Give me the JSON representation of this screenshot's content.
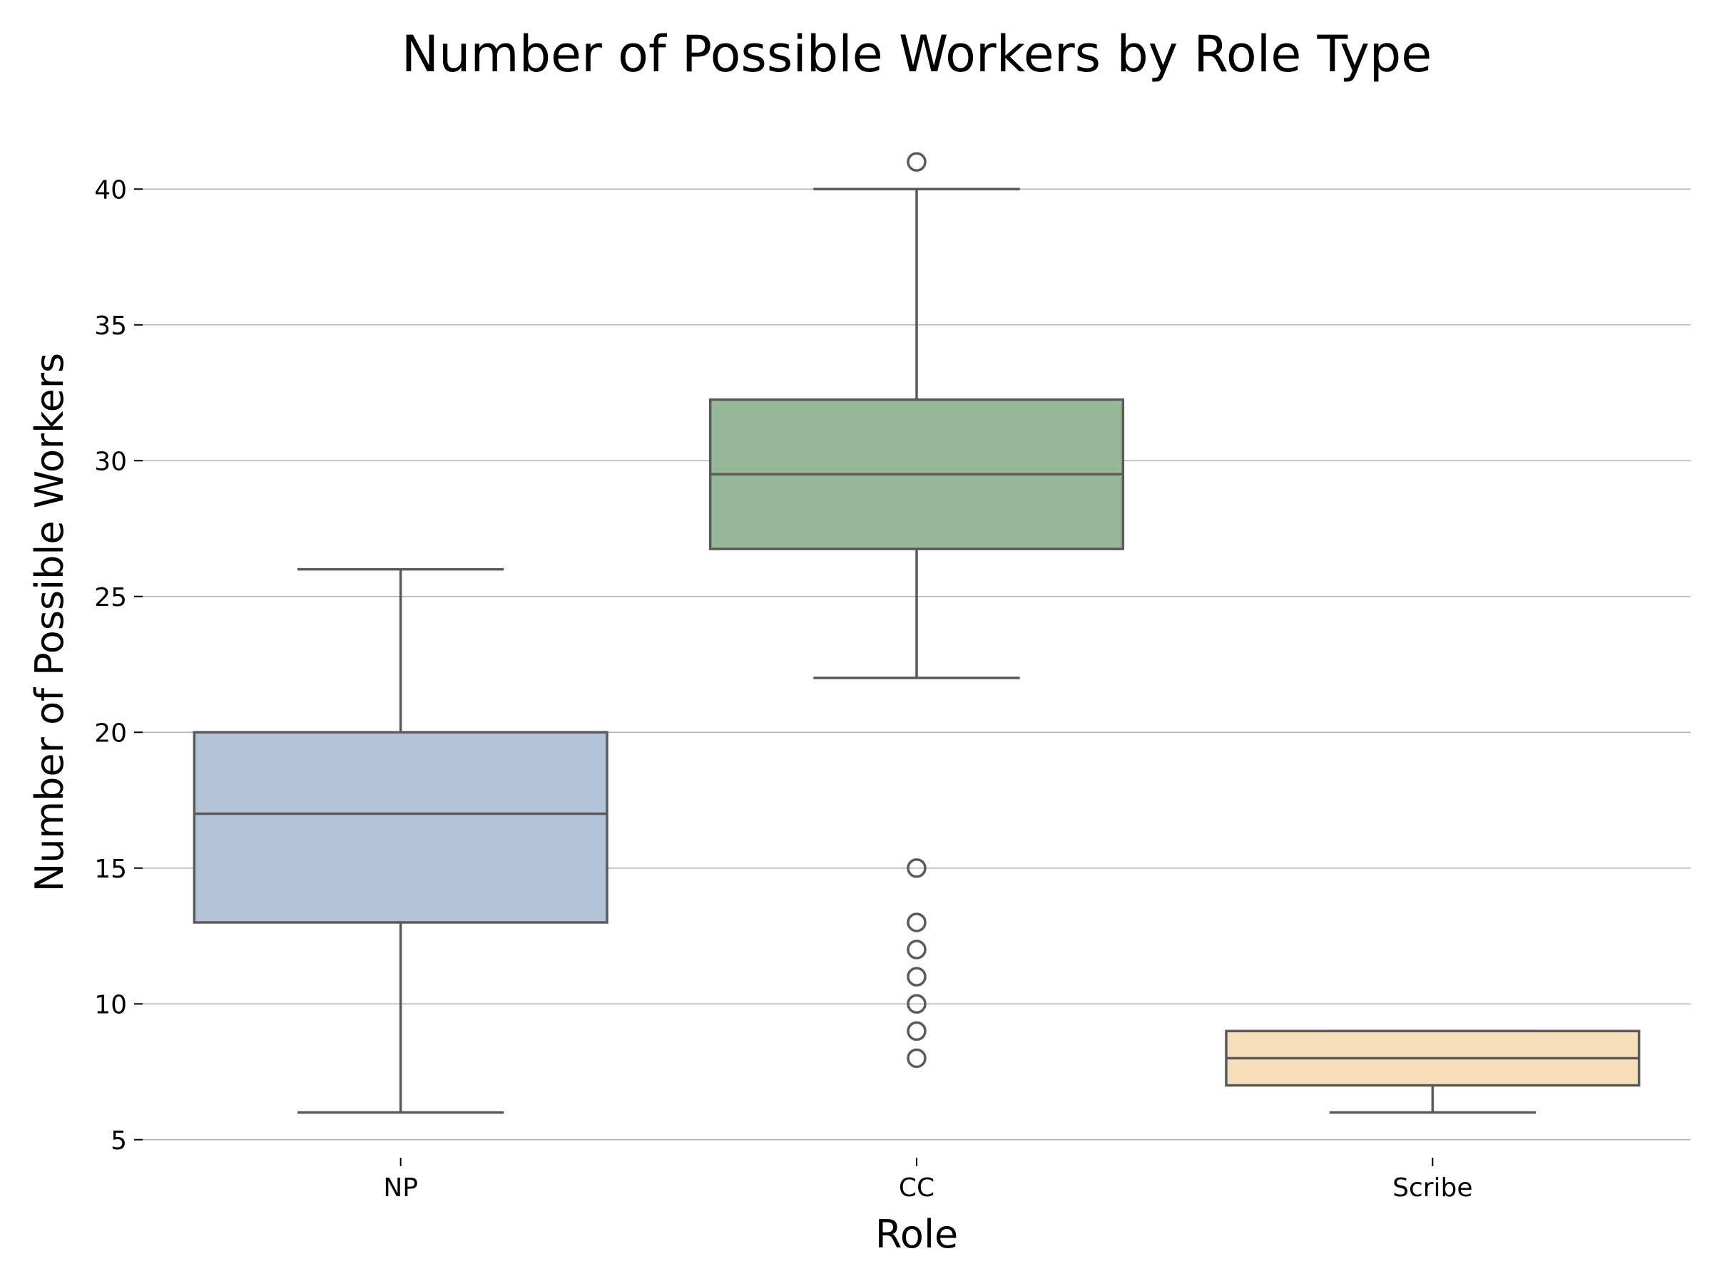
{
  "chart_data": {
    "type": "box",
    "title": "Number of Possible Workers by Role Type",
    "xlabel": "Role",
    "ylabel": "Number of Possible Workers",
    "ylim": [
      4.6,
      42.5
    ],
    "yticks": [
      5,
      10,
      15,
      20,
      25,
      30,
      35,
      40
    ],
    "grid": "horizontal",
    "categories": [
      "NP",
      "CC",
      "Scribe"
    ],
    "boxes": [
      {
        "category": "NP",
        "whisker_low": 6,
        "q1": 13,
        "median": 17,
        "q3": 20,
        "whisker_high": 26,
        "outliers": [],
        "color": "#b4c4d8"
      },
      {
        "category": "CC",
        "whisker_low": 22,
        "q1": 26.75,
        "median": 29.5,
        "q3": 32.25,
        "whisker_high": 40,
        "outliers": [
          41,
          15,
          13,
          12,
          11,
          10,
          9,
          8
        ],
        "color": "#96b896"
      },
      {
        "category": "Scribe",
        "whisker_low": 6,
        "q1": 7,
        "median": 8,
        "q3": 9,
        "whisker_high": 9,
        "outliers": [],
        "color": "#f7dfba"
      }
    ]
  }
}
